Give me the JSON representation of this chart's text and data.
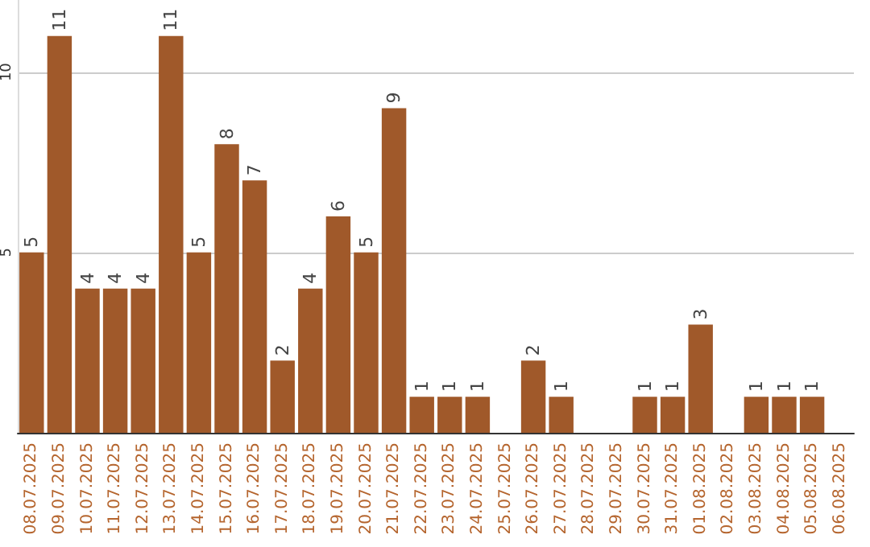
{
  "chart_data": {
    "type": "bar",
    "categories": [
      "08.07.2025",
      "09.07.2025",
      "10.07.2025",
      "11.07.2025",
      "12.07.2025",
      "13.07.2025",
      "14.07.2025",
      "15.07.2025",
      "16.07.2025",
      "17.07.2025",
      "18.07.2025",
      "19.07.2025",
      "20.07.2025",
      "21.07.2025",
      "22.07.2025",
      "23.07.2025",
      "24.07.2025",
      "25.07.2025",
      "26.07.2025",
      "27.07.2025",
      "28.07.2025",
      "29.07.2025",
      "30.07.2025",
      "31.07.2025",
      "01.08.2025",
      "02.08.2025",
      "03.08.2025",
      "04.08.2025",
      "05.08.2025",
      "06.08.2025"
    ],
    "values": [
      5,
      11,
      4,
      4,
      4,
      11,
      5,
      8,
      7,
      2,
      4,
      6,
      5,
      9,
      1,
      1,
      1,
      null,
      2,
      1,
      null,
      null,
      1,
      1,
      3,
      null,
      1,
      1,
      1,
      null
    ],
    "color": "#a0592a",
    "ylim": [
      0,
      12
    ],
    "yticks": [
      5,
      10
    ],
    "grid": "y",
    "data_labels": true
  }
}
